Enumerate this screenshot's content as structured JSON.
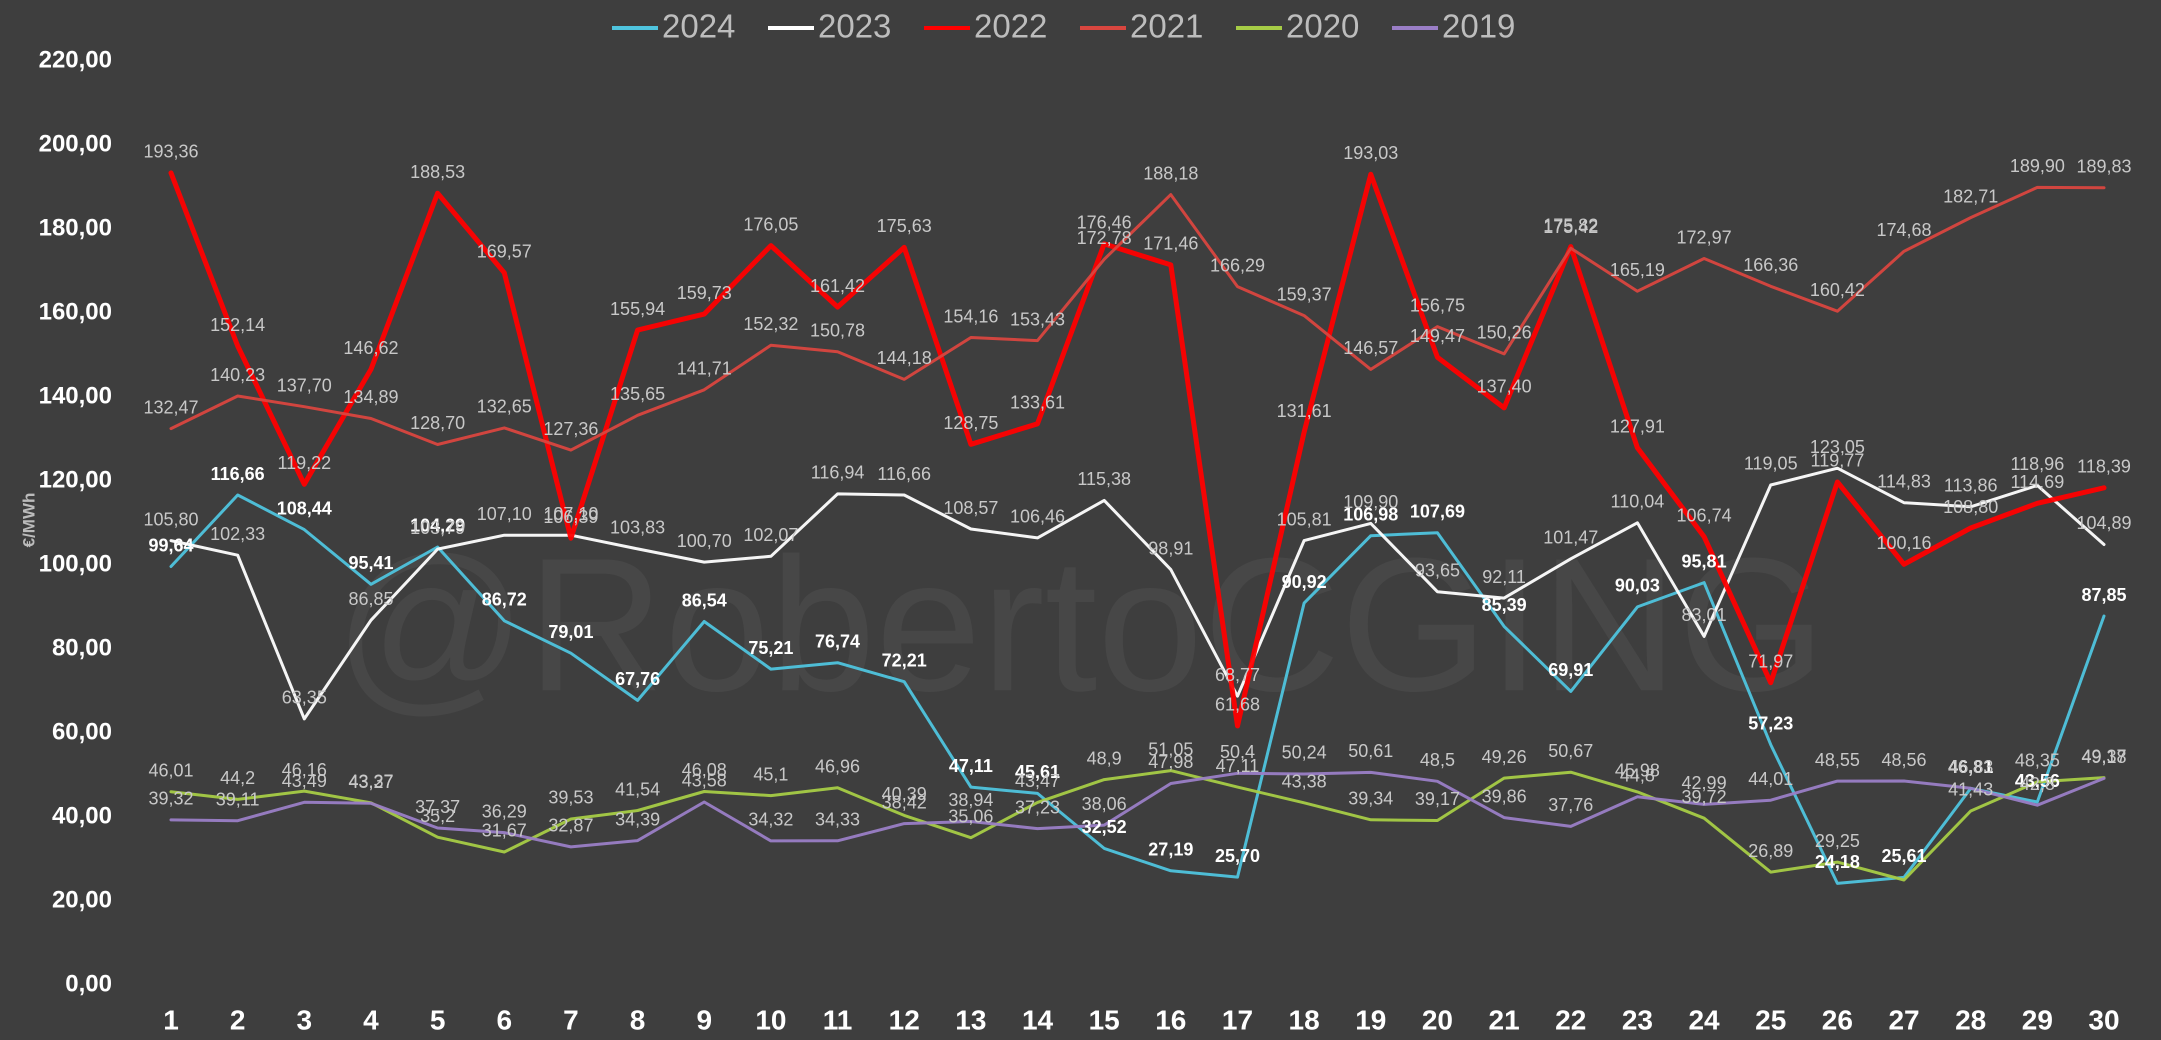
{
  "chart_data": {
    "type": "line",
    "y_label": "€/MWh",
    "watermark": "@RobertoCGING",
    "categories": [
      "1",
      "2",
      "3",
      "4",
      "5",
      "6",
      "7",
      "8",
      "9",
      "10",
      "11",
      "12",
      "13",
      "14",
      "15",
      "16",
      "17",
      "18",
      "19",
      "20",
      "21",
      "22",
      "23",
      "24",
      "25",
      "26",
      "27",
      "28",
      "29",
      "30"
    ],
    "ylim": [
      0,
      220
    ],
    "yticks": [
      {
        "value": 0,
        "label": "0,00"
      },
      {
        "value": 20,
        "label": "20,00"
      },
      {
        "value": 40,
        "label": "40,00"
      },
      {
        "value": 60,
        "label": "60,00"
      },
      {
        "value": 80,
        "label": "80,00"
      },
      {
        "value": 100,
        "label": "100,00"
      },
      {
        "value": 120,
        "label": "120,00"
      },
      {
        "value": 140,
        "label": "140,00"
      },
      {
        "value": 160,
        "label": "160,00"
      },
      {
        "value": 180,
        "label": "180,00"
      },
      {
        "value": 200,
        "label": "200,00"
      },
      {
        "value": 220,
        "label": "220,00"
      }
    ],
    "legend": "top",
    "series": [
      {
        "name": "2024",
        "color": "#4fc4de",
        "bold_labels": true,
        "values": [
          99.64,
          116.66,
          108.44,
          95.41,
          104.29,
          86.72,
          79.01,
          67.76,
          86.54,
          75.21,
          76.74,
          72.21,
          47.11,
          45.61,
          32.52,
          27.19,
          25.7,
          90.92,
          106.98,
          107.69,
          85.39,
          69.91,
          90.03,
          95.81,
          57.23,
          24.18,
          25.61,
          46.81,
          43.56,
          87.85
        ],
        "value_labels": [
          "99,64",
          "116,66",
          "108,44",
          "95,41",
          "104,29",
          "86,72",
          "79,01",
          "67,76",
          "86,54",
          "75,21",
          "76,74",
          "72,21",
          "47,11",
          "45,61",
          "32,52",
          "27,19",
          "25,70",
          "90,92",
          "106,98",
          "107,69",
          "85,39",
          "69,91",
          "90,03",
          "95,81",
          "57,23",
          "24,18",
          "25,61",
          "46,81",
          "43,56",
          "87,85"
        ]
      },
      {
        "name": "2023",
        "color": "#ffffff",
        "values": [
          105.8,
          102.33,
          63.35,
          86.85,
          103.79,
          107.1,
          107.1,
          103.83,
          100.7,
          102.07,
          116.94,
          116.66,
          108.57,
          106.46,
          115.38,
          98.91,
          68.77,
          105.81,
          109.9,
          93.65,
          92.11,
          101.47,
          110.04,
          83.01,
          119.05,
          123.05,
          114.83,
          113.86,
          118.96,
          104.89
        ],
        "value_labels": [
          "105,80",
          "102,33",
          "63,35",
          "86,85",
          "103,79",
          "107,10",
          "107,10",
          "103,83",
          "100,70",
          "102,07",
          "116,94",
          "116,66",
          "108,57",
          "106,46",
          "115,38",
          "98,91",
          "68,77",
          "105,81",
          "109,90",
          "93,65",
          "92,11",
          "101,47",
          "110,04",
          "83,01",
          "119,05",
          "123,05",
          "114,83",
          "113,86",
          "118,96",
          "104,89"
        ]
      },
      {
        "name": "2022",
        "color": "#ff0000",
        "width": 5,
        "values": [
          193.36,
          152.14,
          119.22,
          146.62,
          188.53,
          169.57,
          106.39,
          155.94,
          159.73,
          176.05,
          161.42,
          175.63,
          128.75,
          133.61,
          176.46,
          171.46,
          61.68,
          131.61,
          193.03,
          149.47,
          137.4,
          175.82,
          127.91,
          106.74,
          71.97,
          119.77,
          100.16,
          108.8,
          114.69,
          118.39
        ],
        "value_labels": [
          "193,36",
          "152,14",
          "119,22",
          "146,62",
          "188,53",
          "169,57",
          "106,39",
          "155,94",
          "159,73",
          "176,05",
          "161,42",
          "175,63",
          "128,75",
          "133,61",
          "176,46",
          "171,46",
          "61,68",
          "131,61",
          "193,03",
          "149,47",
          "137,40",
          "175,82",
          "127,91",
          "106,74",
          "71,97",
          "119,77",
          "100,16",
          "108,80",
          "114,69",
          "118,39"
        ]
      },
      {
        "name": "2021",
        "color": "#d9463f",
        "values": [
          132.47,
          140.23,
          137.7,
          134.89,
          128.7,
          132.65,
          127.36,
          135.65,
          141.71,
          152.32,
          150.78,
          144.18,
          154.16,
          153.43,
          172.78,
          188.18,
          166.29,
          159.37,
          146.57,
          156.75,
          150.26,
          175.42,
          165.19,
          172.97,
          166.36,
          160.42,
          174.68,
          182.71,
          189.9,
          189.83
        ],
        "value_labels": [
          "132,47",
          "140,23",
          "137,70",
          "134,89",
          "128,70",
          "132,65",
          "127,36",
          "135,65",
          "141,71",
          "152,32",
          "150,78",
          "144,18",
          "154,16",
          "153,43",
          "172,78",
          "188,18",
          "166,29",
          "159,37",
          "146,57",
          "156,75",
          "150,26",
          "175,42",
          "165,19",
          "172,97",
          "166,36",
          "160,42",
          "174,68",
          "182,71",
          "189,90",
          "189,83"
        ]
      },
      {
        "name": "2020",
        "color": "#a6cc46",
        "values": [
          46.01,
          44.2,
          46.16,
          43.37,
          35.2,
          31.67,
          39.53,
          41.54,
          46.08,
          45.1,
          46.96,
          40.39,
          35.06,
          43.47,
          48.9,
          51.05,
          47.11,
          43.38,
          39.34,
          39.17,
          49.26,
          50.67,
          45.98,
          39.72,
          26.89,
          29.25,
          25,
          41.43,
          48.35,
          49.37
        ],
        "value_labels": [
          "46,01",
          "44,2",
          "46,16",
          "43,37",
          "35,2",
          "31,67",
          "39,53",
          "41,54",
          "46,08",
          "45,1",
          "46,96",
          "40,39",
          "35,06",
          "43,47",
          "48,9",
          "51,05",
          "47,11",
          "43,38",
          "39,34",
          "39,17",
          "49,26",
          "50,67",
          "45,98",
          "39,72",
          "26,89",
          "29,25",
          null,
          "41,43",
          "48,35",
          "49,37"
        ]
      },
      {
        "name": "2019",
        "color": "#9a7ec6",
        "values": [
          39.32,
          39.11,
          43.49,
          43.27,
          37.37,
          36.29,
          32.87,
          34.39,
          43.58,
          34.32,
          34.33,
          38.42,
          38.94,
          37.23,
          38.06,
          47.98,
          50.4,
          50.24,
          50.61,
          48.5,
          39.86,
          37.76,
          44.8,
          42.99,
          44.01,
          48.55,
          48.56,
          46.83,
          42.8,
          49.18
        ],
        "value_labels": [
          "39,32",
          "39,11",
          "43,49",
          "43,27",
          "37,37",
          "36,29",
          "32,87",
          "34,39",
          "43,58",
          "34,32",
          "34,33",
          "38,42",
          "38,94",
          "37,23",
          "38,06",
          "47,98",
          "50,4",
          "50,24",
          "50,61",
          "48,5",
          "39,86",
          "37,76",
          "44,8",
          "42,99",
          "44,01",
          "48,55",
          "48,56",
          "46,83",
          "42,8",
          "49,18"
        ]
      }
    ]
  }
}
